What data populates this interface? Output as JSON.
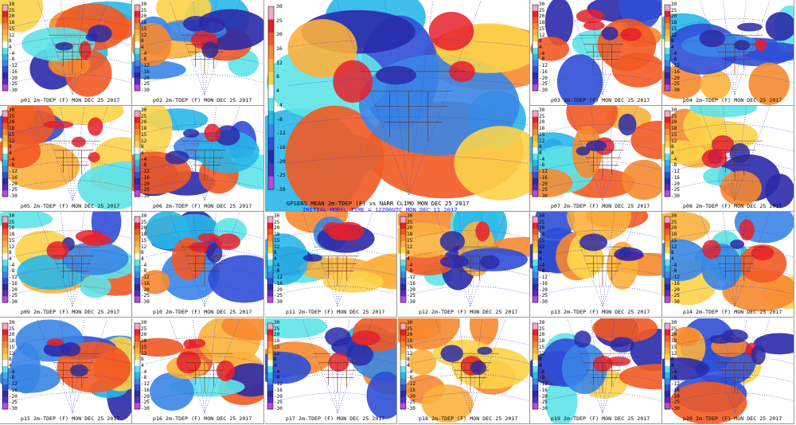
{
  "colorbar": {
    "small_ticks": [
      "30",
      "25",
      "20",
      "18",
      "15",
      "12",
      "8",
      "4",
      "-4",
      "-8",
      "-12",
      "-16",
      "-20",
      "-25",
      "-30"
    ],
    "main_ticks": [
      "30",
      "25",
      "20",
      "16",
      "12",
      "8",
      "4",
      "-4",
      "-8",
      "-12",
      "-16",
      "-20",
      "-25",
      "-30"
    ],
    "colors": [
      "#f4a6c4",
      "#e8202a",
      "#f25a22",
      "#f78a30",
      "#fbb13c",
      "#fcd34a",
      "#ffffff",
      "#5fe3e8",
      "#29b7e8",
      "#3a86e6",
      "#2f4fd6",
      "#2a2aa8",
      "#5b2bc0",
      "#b84be0"
    ]
  },
  "main_panel": {
    "title": "GFSENS MEAN 2m-TDEP (F) vs NARR CLIMO MON DEC 25 2017",
    "subtitle": "INITIAL MODEL TIME = 12Z00UTC MON DEC 11 2017"
  },
  "members": [
    {
      "label": "p01 2m-TDEP (F) MON DEC 25 2017"
    },
    {
      "label": "p02 2m-TDEP (F) MON DEC 25 2017"
    },
    {
      "label": "p03 2m-TDEP (F) MON DEC 25 2017"
    },
    {
      "label": "p04 2m-TDEP (F) MON DEC 25 2017"
    },
    {
      "label": "p05 2m-TDEP (F) MON DEC 25 2017"
    },
    {
      "label": "p06 2m-TDEP (F) MON DEC 25 2017"
    },
    {
      "label": "p07 2m-TDEP (F) MON DEC 25 2017"
    },
    {
      "label": "p08 2m-TDEP (F) MON DEC 25 2017"
    },
    {
      "label": "p09 2m-TDEP (F) MON DEC 25 2017"
    },
    {
      "label": "p10 2m-TDEP (F) MON DEC 25 2017"
    },
    {
      "label": "p11 2m-TDEP (F) MON DEC 25 2017"
    },
    {
      "label": "p12 2m-TDEP (F) MON DEC 25 2017"
    },
    {
      "label": "p13 2m-TDEP (F) MON DEC 25 2017"
    },
    {
      "label": "p14 2m-TDEP (F) MON DEC 25 2017"
    },
    {
      "label": "p15 2m-TDEP (F) MON DEC 25 2017"
    },
    {
      "label": "p16 2m-TDEP (F) MON DEC 25 2017"
    },
    {
      "label": "p17 2m-TDEP (F) MON DEC 25 2017"
    },
    {
      "label": "p18 2m-TDEP (F) MON DEC 25 2017"
    },
    {
      "label": "p19 2m-TDEP (F) MON DEC 25 2017"
    },
    {
      "label": "p20 2m-TDEP (F) MON DEC 25 2017"
    }
  ]
}
